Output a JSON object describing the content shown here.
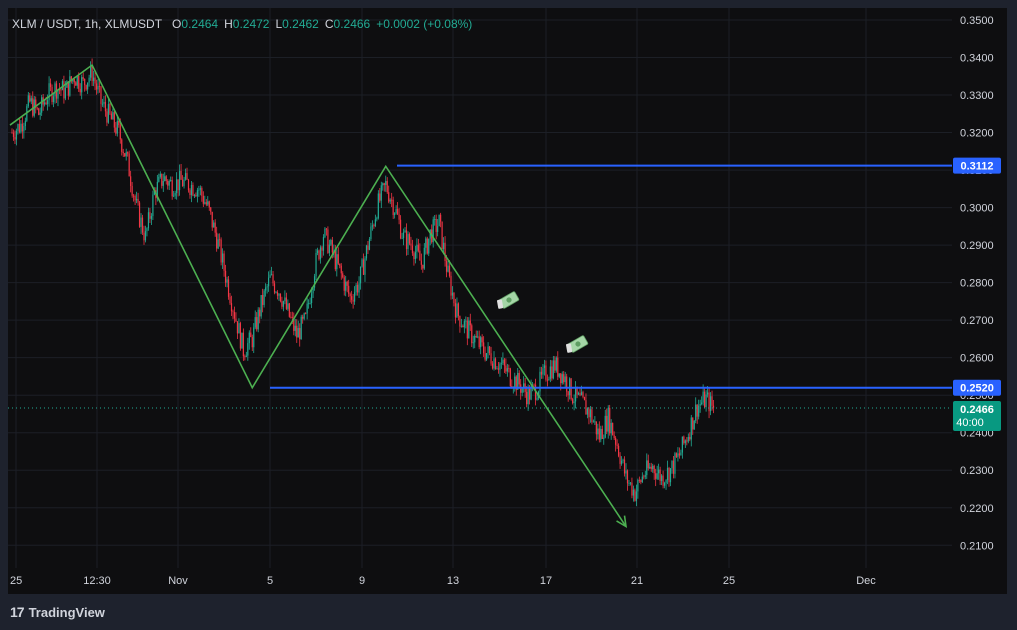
{
  "legend": {
    "symbol": "XLM / USDT, 1h, XLMUSDT",
    "o_label": "O",
    "o_value": "0.2464",
    "h_label": "H",
    "h_value": "0.2472",
    "l_label": "L",
    "l_value": "0.2462",
    "c_label": "C",
    "c_value": "0.2466",
    "change": "+0.0002 (+0.08%)"
  },
  "footer": {
    "logo_text": "17",
    "brand": "TradingView"
  },
  "colors": {
    "background": "#0e0e10",
    "frame": "#1e222d",
    "up": "#22ab94",
    "down": "#f23645",
    "trend": "#4caf50",
    "level": "#2962ff",
    "text": "#d1d4dc"
  },
  "chart_data": {
    "type": "candlestick",
    "y_axis": {
      "ticks": [
        "0.2100",
        "0.2200",
        "0.2300",
        "0.2400",
        "0.2500",
        "0.2600",
        "0.2700",
        "0.2800",
        "0.2900",
        "0.3000",
        "0.3100",
        "0.3200",
        "0.3300",
        "0.3400",
        "0.3500"
      ],
      "range": [
        0.205,
        0.35
      ]
    },
    "x_axis": {
      "ticks": [
        "25",
        "12:30",
        "Nov",
        "5",
        "9",
        "13",
        "17",
        "21",
        "25",
        "Dec"
      ]
    },
    "levels": [
      {
        "value": 0.3112,
        "label": "0.3112"
      },
      {
        "value": 0.252,
        "label": "0.2520"
      }
    ],
    "current_price": {
      "value": 0.2466,
      "label": "0.2466",
      "countdown": "40:00"
    },
    "trend_lines": [
      {
        "name": "zigzag",
        "points": [
          [
            0,
            0.322
          ],
          [
            9,
            0.338
          ],
          [
            27,
            0.252
          ],
          [
            42,
            0.311
          ],
          [
            69,
            0.215
          ]
        ],
        "arrow": true
      }
    ],
    "price_path": [
      0.32,
      0.322,
      0.328,
      0.325,
      0.33,
      0.332,
      0.331,
      0.335,
      0.333,
      0.336,
      0.328,
      0.324,
      0.32,
      0.312,
      0.3,
      0.292,
      0.304,
      0.308,
      0.306,
      0.307,
      0.306,
      0.305,
      0.3,
      0.292,
      0.282,
      0.272,
      0.262,
      0.265,
      0.274,
      0.281,
      0.278,
      0.272,
      0.266,
      0.27,
      0.284,
      0.293,
      0.288,
      0.282,
      0.276,
      0.28,
      0.29,
      0.3,
      0.306,
      0.3,
      0.292,
      0.29,
      0.285,
      0.293,
      0.296,
      0.282,
      0.272,
      0.268,
      0.265,
      0.262,
      0.26,
      0.258,
      0.255,
      0.253,
      0.25,
      0.252,
      0.256,
      0.258,
      0.255,
      0.25,
      0.248,
      0.245,
      0.239,
      0.244,
      0.237,
      0.228,
      0.224,
      0.229,
      0.231,
      0.228,
      0.23,
      0.234,
      0.24,
      0.247,
      0.249,
      0.246
    ]
  }
}
